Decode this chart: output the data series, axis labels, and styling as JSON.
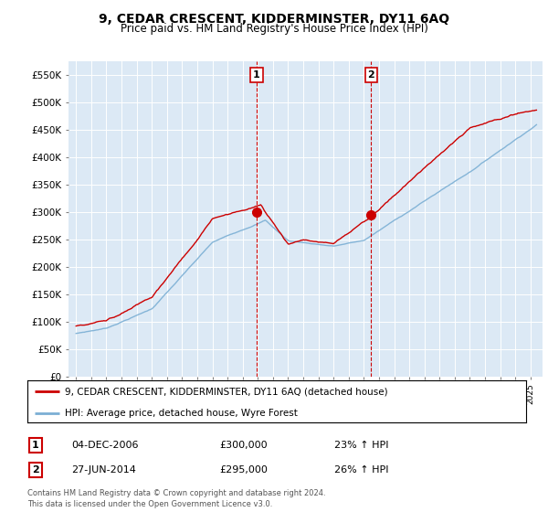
{
  "title": "9, CEDAR CRESCENT, KIDDERMINSTER, DY11 6AQ",
  "subtitle": "Price paid vs. HM Land Registry's House Price Index (HPI)",
  "xlim_start": 1994.5,
  "xlim_end": 2025.8,
  "ylim_bottom": 0,
  "ylim_top": 575000,
  "yticks": [
    0,
    50000,
    100000,
    150000,
    200000,
    250000,
    300000,
    350000,
    400000,
    450000,
    500000,
    550000
  ],
  "ytick_labels": [
    "£0",
    "£50K",
    "£100K",
    "£150K",
    "£200K",
    "£250K",
    "£300K",
    "£350K",
    "£400K",
    "£450K",
    "£500K",
    "£550K"
  ],
  "plot_bg_color": "#dce9f5",
  "red_line_color": "#cc0000",
  "blue_line_color": "#7bafd4",
  "transaction1_x": 2006.92,
  "transaction1_y": 300000,
  "transaction2_x": 2014.49,
  "transaction2_y": 295000,
  "legend_line1": "9, CEDAR CRESCENT, KIDDERMINSTER, DY11 6AQ (detached house)",
  "legend_line2": "HPI: Average price, detached house, Wyre Forest",
  "table_row1": [
    "1",
    "04-DEC-2006",
    "£300,000",
    "23% ↑ HPI"
  ],
  "table_row2": [
    "2",
    "27-JUN-2014",
    "£295,000",
    "26% ↑ HPI"
  ],
  "footer": "Contains HM Land Registry data © Crown copyright and database right 2024.\nThis data is licensed under the Open Government Licence v3.0."
}
